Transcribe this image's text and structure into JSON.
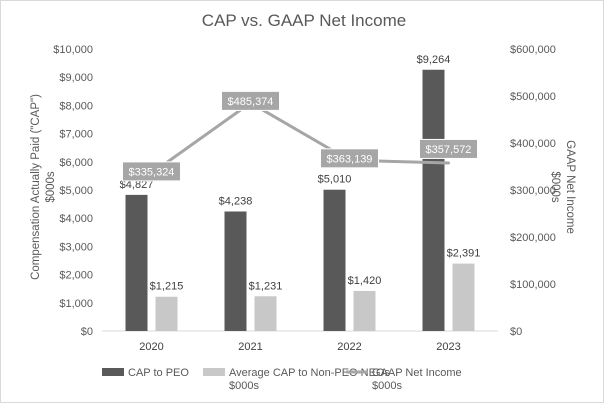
{
  "chart_data": {
    "type": "bar",
    "title": "CAP vs. GAAP Net Income",
    "categories": [
      "2020",
      "2021",
      "2022",
      "2023"
    ],
    "series": [
      {
        "name": "CAP to PEO",
        "axis": "left",
        "color": "#595959",
        "values": [
          4827,
          4238,
          5010,
          9264
        ],
        "labels": [
          "$4,827",
          "$4,238",
          "$5,010",
          "$9,264"
        ]
      },
      {
        "name": "Average CAP to Non-PEO NEOs $000s",
        "axis": "left",
        "color": "#c8c8c8",
        "values": [
          1215,
          1231,
          1420,
          2391
        ],
        "labels": [
          "$1,215",
          "$1,231",
          "$1,420",
          "$2,391"
        ]
      },
      {
        "name": "GAAP Net Income $000s",
        "type": "line",
        "axis": "right",
        "color": "#a6a6a6",
        "values": [
          335324,
          485374,
          363139,
          357572
        ],
        "labels": [
          "$335,324",
          "$485,374",
          "$363,139",
          "$357,572"
        ]
      }
    ],
    "y_left": {
      "label": "Compensation Actually Paid (\"CAP\") $000s",
      "label_lines": [
        "Compensation Actually Paid (\"CAP\")",
        "$000s"
      ],
      "ylim": [
        0,
        10000
      ],
      "ticks": [
        "$0",
        "$1,000",
        "$2,000",
        "$3,000",
        "$4,000",
        "$5,000",
        "$6,000",
        "$7,000",
        "$8,000",
        "$9,000",
        "$10,000"
      ]
    },
    "y_right": {
      "label": "GAAP Net Income $000s",
      "label_lines": [
        "GAAP Net Income",
        "$000s"
      ],
      "ylim": [
        0,
        600000
      ],
      "ticks": [
        "$0",
        "$100,000",
        "$200,000",
        "$300,000",
        "$400,000",
        "$500,000",
        "$600,000"
      ]
    },
    "legend": {
      "position": "bottom",
      "entries": [
        {
          "lines": [
            "CAP to PEO"
          ],
          "color": "#595959",
          "kind": "box"
        },
        {
          "lines": [
            "Average CAP to Non-PEO NEOs",
            "$000s"
          ],
          "color": "#c8c8c8",
          "kind": "box"
        },
        {
          "lines": [
            "GAAP Net Income",
            "$000s"
          ],
          "color": "#a6a6a6",
          "kind": "line"
        }
      ]
    },
    "gridlines": false
  }
}
